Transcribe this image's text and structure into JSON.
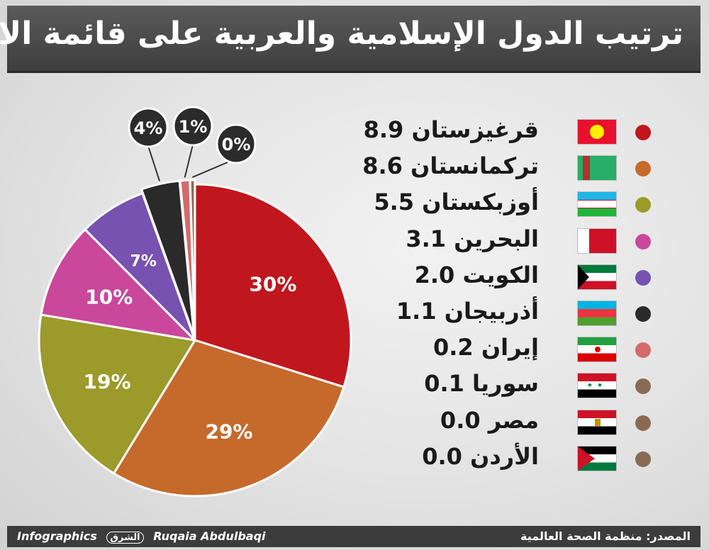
{
  "title": "ترتيب الدول الإسلامية والعربية على قائمة الانتحار",
  "footer": {
    "credit_prefix": "Infographics",
    "logo_text": "الشرق",
    "author": "Ruqaia Abdulbaqi",
    "source": "المصدر: منظمة الصحة العالمية"
  },
  "chart_data": {
    "type": "pie",
    "slices": [
      {
        "label": "30%",
        "value": 30,
        "color": "#c0171e"
      },
      {
        "label": "29%",
        "value": 29,
        "color": "#c66a2c"
      },
      {
        "label": "19%",
        "value": 19,
        "color": "#9c9a2a"
      },
      {
        "label": "10%",
        "value": 10,
        "color": "#c9489b"
      },
      {
        "label": "7%",
        "value": 7,
        "color": "#7752b1"
      },
      {
        "label": "4%",
        "value": 4,
        "color": "#2a2a2a"
      },
      {
        "label": "1%",
        "value": 1,
        "color": "#d46a6a"
      },
      {
        "label": "0%",
        "value": 0.5,
        "color": "#8a6a55"
      }
    ],
    "legend": [
      {
        "country": "قرغيزستان",
        "value": "8.9",
        "color": "#c0171e",
        "flag": "kyrgyzstan-flag-icon"
      },
      {
        "country": "تركمانستان",
        "value": "8.6",
        "color": "#c66a2c",
        "flag": "turkmenistan-flag-icon"
      },
      {
        "country": "أوزبكستان",
        "value": "5.5",
        "color": "#9c9a2a",
        "flag": "uzbekistan-flag-icon"
      },
      {
        "country": "البحرين",
        "value": "3.1",
        "color": "#c9489b",
        "flag": "bahrain-flag-icon"
      },
      {
        "country": "الكويت",
        "value": "2.0",
        "color": "#7752b1",
        "flag": "kuwait-flag-icon"
      },
      {
        "country": "أذربيجان",
        "value": "1.1",
        "color": "#2a2a2a",
        "flag": "azerbaijan-flag-icon"
      },
      {
        "country": "إيران",
        "value": "0.2",
        "color": "#d46a6a",
        "flag": "iran-flag-icon"
      },
      {
        "country": "سوريا",
        "value": "0.1",
        "color": "#8a6a55",
        "flag": "syria-flag-icon"
      },
      {
        "country": "مصر",
        "value": "0.0",
        "color": "#8a6a55",
        "flag": "egypt-flag-icon"
      },
      {
        "country": "الأردن",
        "value": "0.0",
        "color": "#8a6a55",
        "flag": "jordan-flag-icon"
      }
    ]
  }
}
